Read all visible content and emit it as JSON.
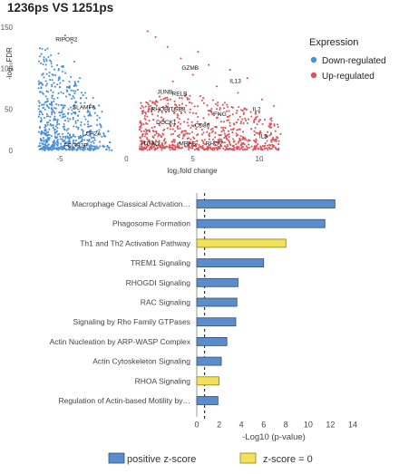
{
  "title": "1236ps VS 1251ps",
  "colors": {
    "down": "#4a8fd6",
    "up": "#d9545a",
    "positive": "#5b8ccb",
    "zero": "#f2e25a",
    "bar_stroke": "#2f4f7a",
    "zero_stroke": "#8a7f22"
  },
  "chart_data": [
    {
      "type": "scatter",
      "title": "",
      "xlabel": "log₂fold change",
      "ylabel": "-log₁₀FDR",
      "xlim": [
        -8,
        13
      ],
      "ylim": [
        0,
        150
      ],
      "xticks": [
        "-5",
        "0",
        "5",
        "10"
      ],
      "yticks": [
        "0",
        "50",
        "100",
        "150"
      ],
      "grid": false,
      "legend": {
        "title": "Expression",
        "position": "right",
        "entries": [
          "Down-regulated",
          "Up-regulated"
        ]
      },
      "labeled_genes": [
        {
          "name": "RIPOR2",
          "x": -4.5,
          "y": 133
        },
        {
          "name": "SLAMF6",
          "x": -3.2,
          "y": 50
        },
        {
          "name": "LCP2A",
          "x": -2.6,
          "y": 18
        },
        {
          "name": "FCGR2B",
          "x": -3.8,
          "y": 4
        },
        {
          "name": "GZMB",
          "x": 4.8,
          "y": 98
        },
        {
          "name": "IL13",
          "x": 8.2,
          "y": 82
        },
        {
          "name": "JUNB",
          "x": 2.9,
          "y": 69
        },
        {
          "name": "RELB",
          "x": 4.0,
          "y": 67
        },
        {
          "name": "ITGB8",
          "x": 3.8,
          "y": 48
        },
        {
          "name": "RHOB",
          "x": 2.5,
          "y": 48
        },
        {
          "name": "DOCK1",
          "x": 3.0,
          "y": 32
        },
        {
          "name": "IFNG",
          "x": 7.0,
          "y": 42
        },
        {
          "name": "CD80",
          "x": 5.7,
          "y": 28
        },
        {
          "name": "IL2",
          "x": 9.8,
          "y": 48
        },
        {
          "name": "IL3",
          "x": 10.3,
          "y": 15
        },
        {
          "name": "ITGAD",
          "x": 1.8,
          "y": 6
        },
        {
          "name": "MRAS",
          "x": 4.6,
          "y": 6
        },
        {
          "name": "RHOV",
          "x": 6.6,
          "y": 6
        }
      ]
    },
    {
      "type": "bar",
      "orientation": "horizontal",
      "title": "",
      "xlabel": "-Log10 (p-value)",
      "ylabel": "",
      "xlim": [
        0,
        14
      ],
      "xticks": [
        0,
        2,
        4,
        6,
        8,
        10,
        12,
        14
      ],
      "threshold": 0.7,
      "grid": false,
      "legend": {
        "position": "bottom",
        "entries": [
          {
            "label": "positive z-score",
            "color": "#5b8ccb"
          },
          {
            "label": "z-score = 0",
            "color": "#f2e25a"
          }
        ]
      },
      "categories": [
        "Macrophage Classical Activation…",
        "Phagosome Formation",
        "Th1 and Th2 Activation Pathway",
        "TREM1 Signaling",
        "RHOGDI Signaling",
        "RAC Signaling",
        "Signaling by Rho Family GTPases",
        "Actin Nucleation by ARP-WASP Complex",
        "Actin Cytoskeleton Signaling",
        "RHOA Signaling",
        "Regulation of Actin-based Motility by…"
      ],
      "values": [
        12.4,
        11.5,
        8.0,
        6.0,
        3.7,
        3.6,
        3.5,
        2.7,
        2.2,
        2.0,
        1.9
      ],
      "zscore": [
        "positive",
        "positive",
        "zero",
        "positive",
        "positive",
        "positive",
        "positive",
        "positive",
        "positive",
        "zero",
        "positive"
      ]
    }
  ]
}
